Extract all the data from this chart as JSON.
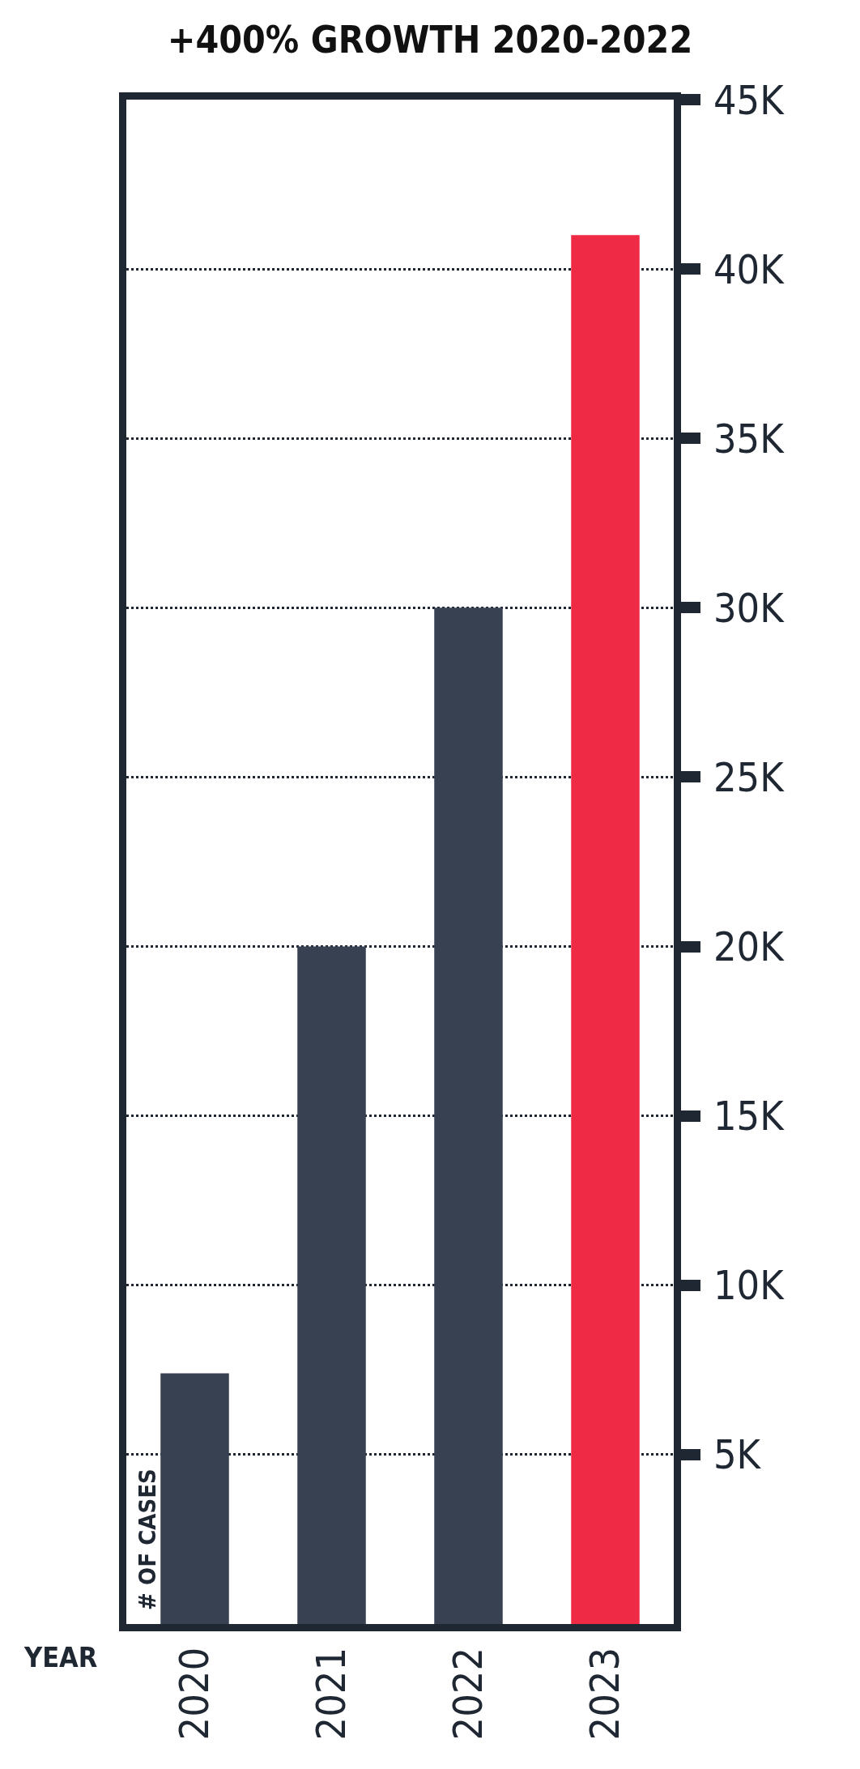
{
  "chart_data": {
    "type": "bar",
    "title": "+400% GROWTH 2020-2022",
    "xlabel": "YEAR",
    "ylabel": "# OF CASES",
    "categories": [
      "2020",
      "2021",
      "2022",
      "2023"
    ],
    "values": [
      7400,
      20000,
      30000,
      41000
    ],
    "colors": [
      "#374151",
      "#374151",
      "#374151",
      "#ef2a45"
    ],
    "ylim": [
      0,
      45000
    ],
    "yticks": [
      {
        "value": 5000,
        "label": "5K"
      },
      {
        "value": 10000,
        "label": "10K"
      },
      {
        "value": 15000,
        "label": "15K"
      },
      {
        "value": 20000,
        "label": "20K"
      },
      {
        "value": 25000,
        "label": "25K"
      },
      {
        "value": 30000,
        "label": "30K"
      },
      {
        "value": 35000,
        "label": "35K"
      },
      {
        "value": 40000,
        "label": "40K"
      },
      {
        "value": 45000,
        "label": "45K"
      }
    ],
    "grid": "y",
    "legend": false
  }
}
